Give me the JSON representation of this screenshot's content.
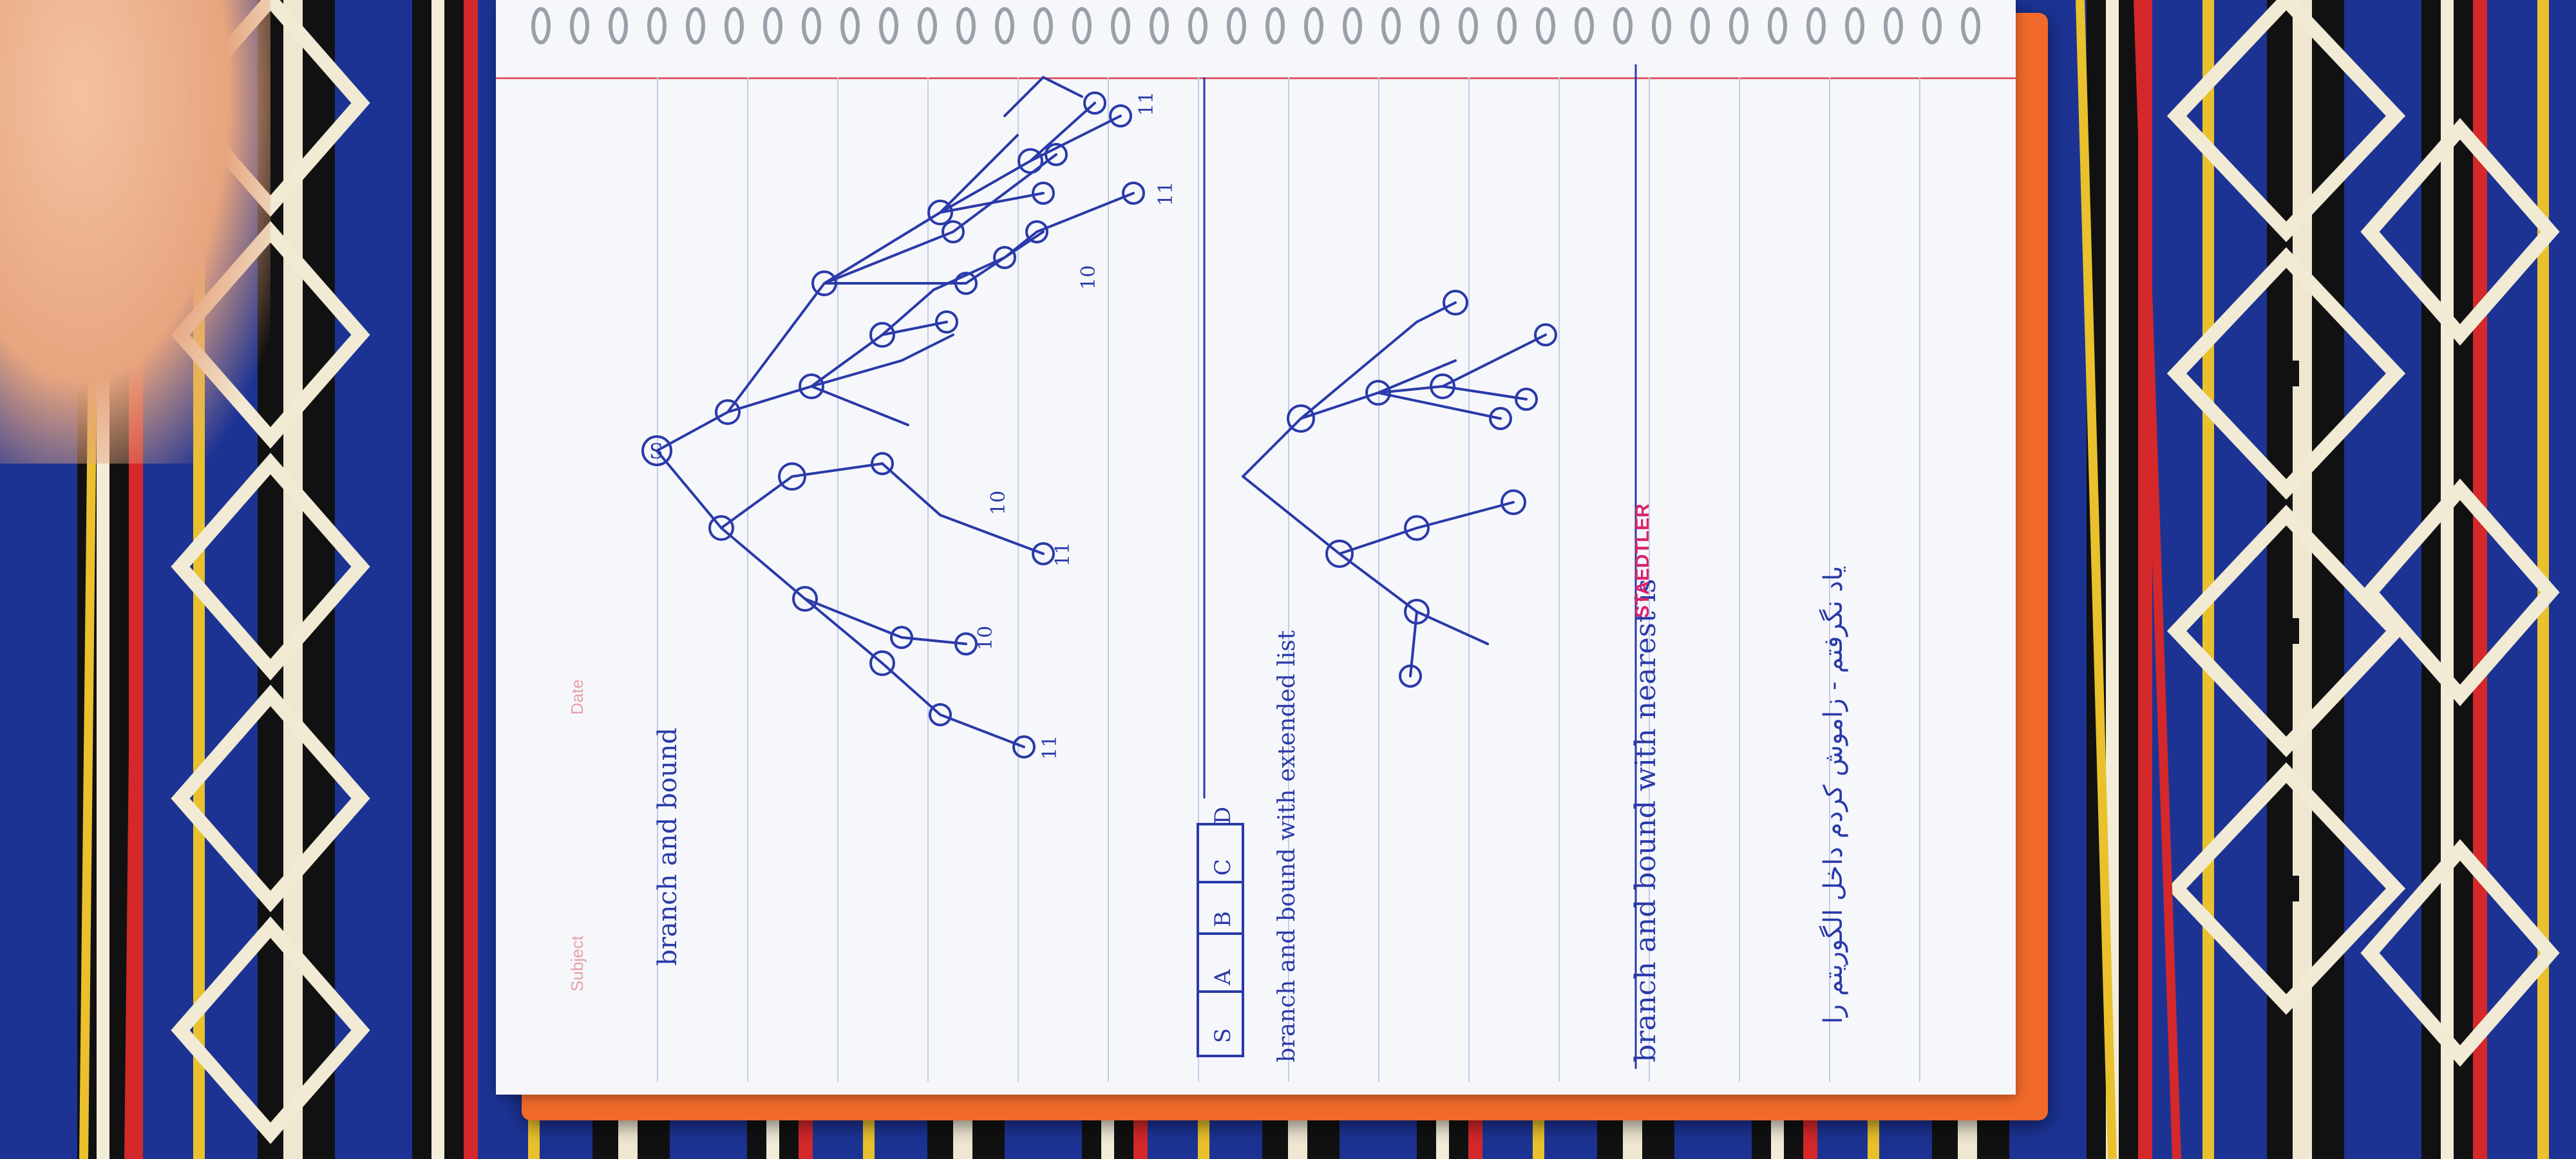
{
  "page_labels": {
    "subject": "Subject",
    "date": "Date"
  },
  "notebook_brand": "STAEDTLER",
  "notes": {
    "title_top": "branch and bound",
    "list_title": "branch and bound with extended list",
    "list_letters": [
      "S",
      "A",
      "B",
      "C",
      "D"
    ],
    "bottom_title": "branch and bound with nearest is",
    "persian_note": "یاد نگرفتم - زاموش کردم داخل الگوریتم را"
  },
  "tree_labels": {
    "root": "S",
    "leaf_values": [
      "11",
      "10",
      "11",
      "10",
      "11",
      "10",
      "11"
    ]
  },
  "colors": {
    "ink": "#2a3aa8",
    "page": "#f6f7fb",
    "cover": "#f26a2b",
    "margin": "#e05a6a"
  }
}
